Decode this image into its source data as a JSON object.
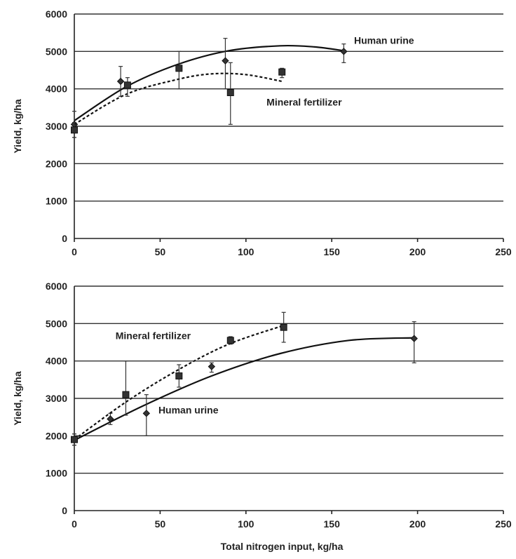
{
  "chart_data": [
    {
      "type": "scatter",
      "title": "",
      "xlabel": "",
      "ylabel": "Yield, kg/ha",
      "xlim": [
        0,
        250
      ],
      "ylim": [
        0,
        6000
      ],
      "xticks": [
        "0",
        "50",
        "100",
        "150",
        "200",
        "250"
      ],
      "yticks": [
        "0",
        "1000",
        "2000",
        "3000",
        "4000",
        "5000",
        "6000"
      ],
      "grid": "horizontal",
      "series": [
        {
          "name": "Human urine",
          "marker": "diamond",
          "line": "solid",
          "points": [
            {
              "x": 0,
              "y": 3050,
              "lo": 2700,
              "hi": 3400
            },
            {
              "x": 27,
              "y": 4200,
              "lo": 3800,
              "hi": 4600
            },
            {
              "x": 88,
              "y": 4750,
              "lo": 4000,
              "hi": 5350
            },
            {
              "x": 157,
              "y": 5000,
              "lo": 4700,
              "hi": 5200
            }
          ],
          "curve": [
            [
              0,
              3150
            ],
            [
              30,
              4050
            ],
            [
              60,
              4650
            ],
            [
              90,
              5020
            ],
            [
              120,
              5150
            ],
            [
              140,
              5120
            ],
            [
              157,
              5020
            ]
          ]
        },
        {
          "name": "Mineral fertilizer",
          "marker": "square",
          "line": "dashed",
          "points": [
            {
              "x": 0,
              "y": 2900,
              "lo": 2700,
              "hi": 3100
            },
            {
              "x": 31,
              "y": 4100,
              "lo": 3800,
              "hi": 4300
            },
            {
              "x": 61,
              "y": 4550,
              "lo": 4000,
              "hi": 5000
            },
            {
              "x": 91,
              "y": 3900,
              "lo": 3050,
              "hi": 4700
            },
            {
              "x": 121,
              "y": 4450,
              "lo": 4300,
              "hi": 4550
            }
          ],
          "curve": [
            [
              0,
              3050
            ],
            [
              30,
              3850
            ],
            [
              60,
              4250
            ],
            [
              80,
              4400
            ],
            [
              100,
              4380
            ],
            [
              121,
              4200
            ]
          ]
        }
      ],
      "annotations": [
        {
          "text": "Human urine",
          "x": 163,
          "y": 5200
        },
        {
          "text": "Mineral fertilizer",
          "x": 112,
          "y": 3550
        }
      ]
    },
    {
      "type": "scatter",
      "title": "",
      "xlabel": "Total nitrogen input, kg/ha",
      "ylabel": "Yield, kg/ha",
      "xlim": [
        0,
        250
      ],
      "ylim": [
        0,
        6000
      ],
      "xticks": [
        "0",
        "50",
        "100",
        "150",
        "200",
        "250"
      ],
      "yticks": [
        "0",
        "1000",
        "2000",
        "3000",
        "4000",
        "5000",
        "6000"
      ],
      "grid": "horizontal",
      "series": [
        {
          "name": "Human urine",
          "marker": "diamond",
          "line": "solid",
          "points": [
            {
              "x": 0,
              "y": 1900,
              "lo": 1750,
              "hi": 2050
            },
            {
              "x": 21,
              "y": 2450,
              "lo": 2300,
              "hi": 2600
            },
            {
              "x": 42,
              "y": 2600,
              "lo": 2000,
              "hi": 3100
            },
            {
              "x": 80,
              "y": 3850,
              "lo": 3700,
              "hi": 3950
            },
            {
              "x": 198,
              "y": 4600,
              "lo": 3950,
              "hi": 5050
            }
          ],
          "curve": [
            [
              0,
              1880
            ],
            [
              40,
              2800
            ],
            [
              80,
              3600
            ],
            [
              120,
              4200
            ],
            [
              160,
              4550
            ],
            [
              198,
              4620
            ]
          ]
        },
        {
          "name": "Mineral fertilizer",
          "marker": "square",
          "line": "dashed",
          "points": [
            {
              "x": 0,
              "y": 1900,
              "lo": 1750,
              "hi": 2050
            },
            {
              "x": 30,
              "y": 3100,
              "lo": 2550,
              "hi": 4000
            },
            {
              "x": 61,
              "y": 3600,
              "lo": 3300,
              "hi": 3900
            },
            {
              "x": 91,
              "y": 4550,
              "lo": 4450,
              "hi": 4650
            },
            {
              "x": 122,
              "y": 4900,
              "lo": 4500,
              "hi": 5300
            }
          ],
          "curve": [
            [
              0,
              1900
            ],
            [
              30,
              2900
            ],
            [
              60,
              3750
            ],
            [
              90,
              4450
            ],
            [
              122,
              4950
            ]
          ]
        }
      ],
      "annotations": [
        {
          "text": "Mineral fertilizer",
          "x": 24,
          "y": 4580
        },
        {
          "text": "Human urine",
          "x": 49,
          "y": 2600
        }
      ]
    }
  ]
}
